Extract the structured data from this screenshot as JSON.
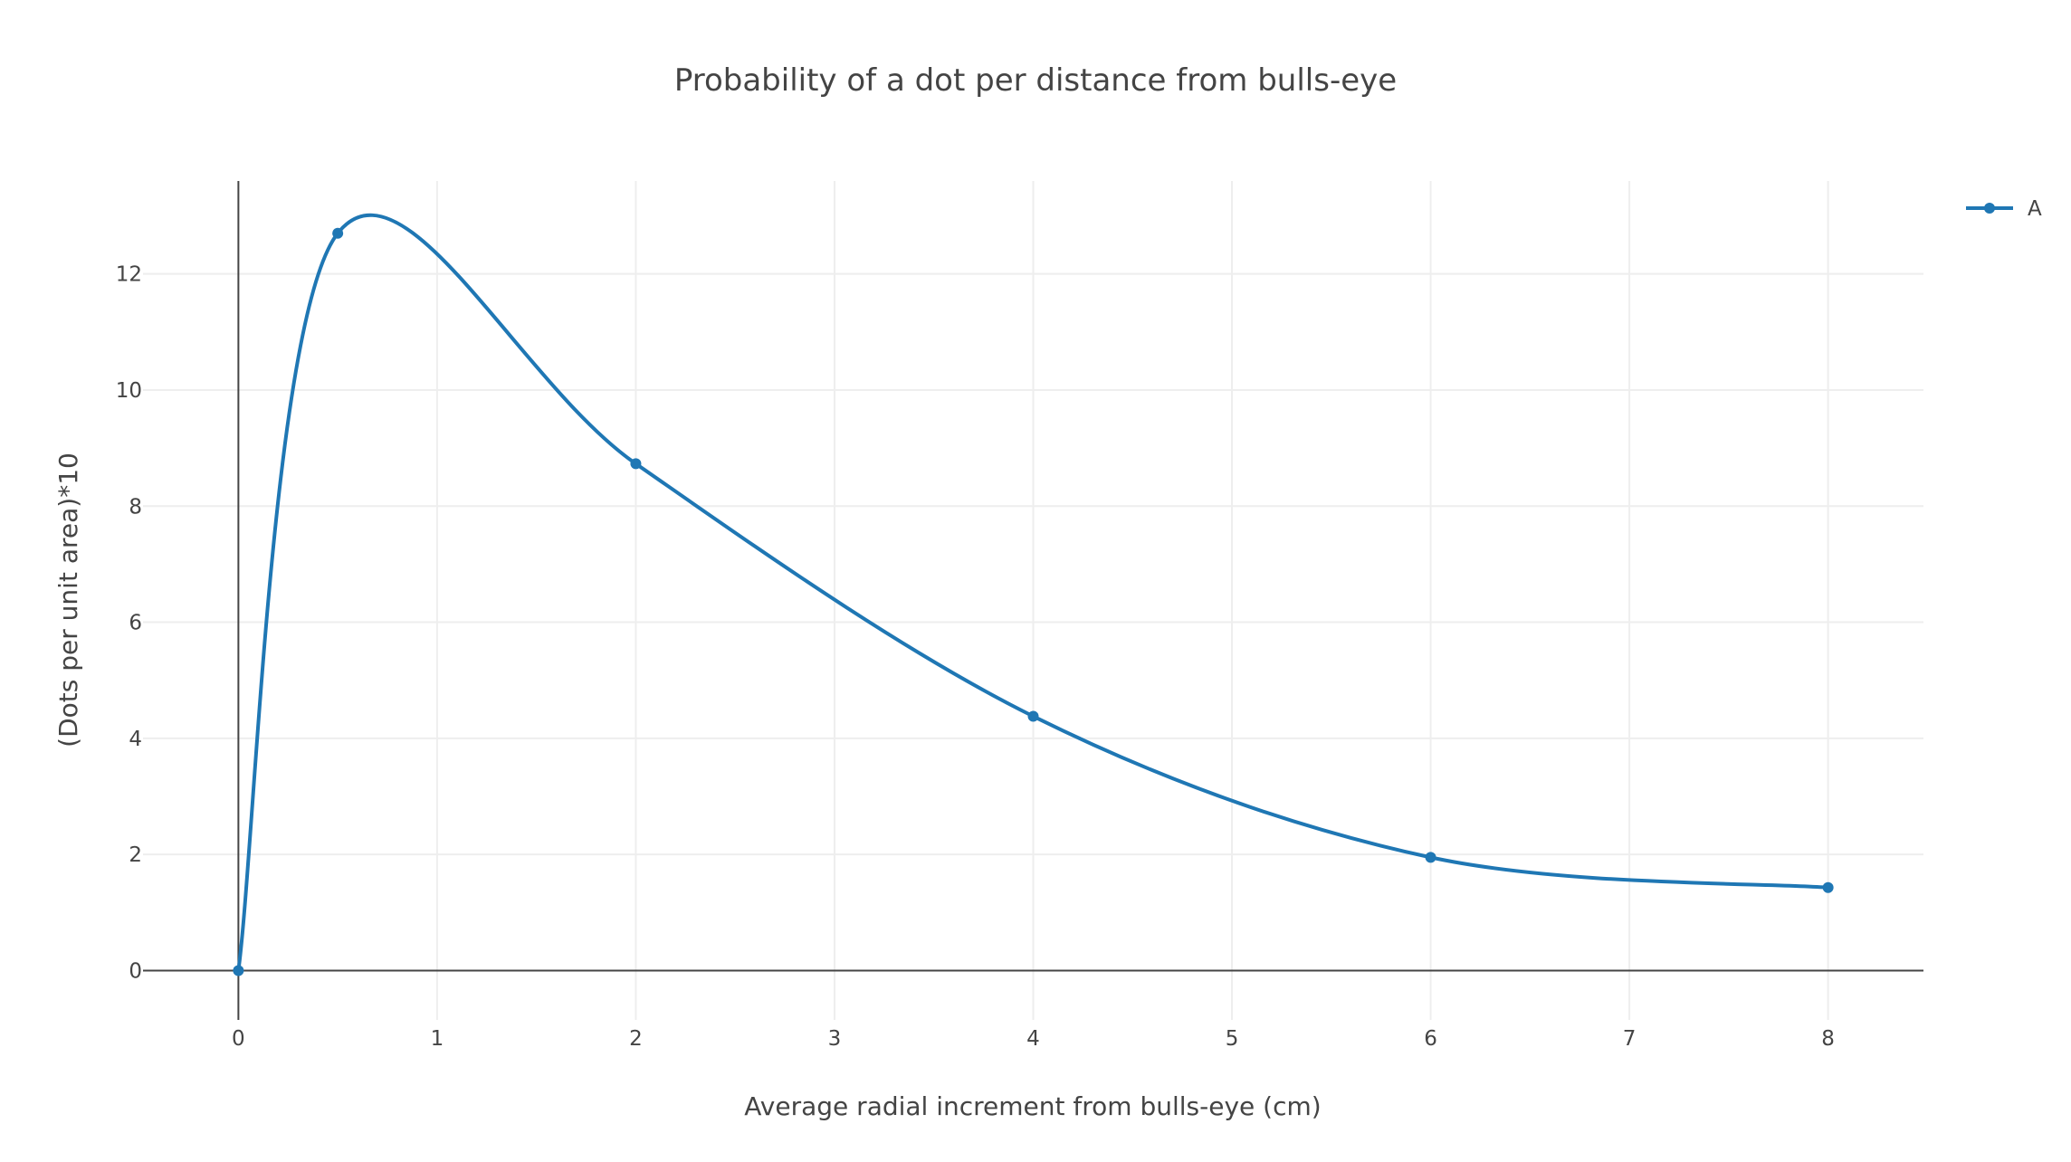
{
  "chart_data": {
    "type": "line",
    "title": "Probability of a dot per distance from bulls-eye",
    "xlabel": "Average radial increment from bulls-eye (cm)",
    "ylabel": "(Dots per unit area)*10",
    "xlim": [
      -0.48,
      8.48
    ],
    "ylim": [
      -0.85,
      13.6
    ],
    "x_ticks": [
      0,
      1,
      2,
      3,
      4,
      5,
      6,
      7,
      8
    ],
    "y_ticks": [
      0,
      2,
      4,
      6,
      8,
      10,
      12
    ],
    "grid": true,
    "legend_position": "top-right",
    "colors": {
      "series": "#1f77b4",
      "grid": "#eeeeee",
      "zero_line": "#444444",
      "text": "#444444"
    },
    "series": [
      {
        "name": "A",
        "x": [
          0,
          0.5,
          2,
          4,
          6,
          8
        ],
        "y": [
          0,
          12.7,
          8.73,
          4.38,
          1.95,
          1.43
        ]
      }
    ]
  }
}
